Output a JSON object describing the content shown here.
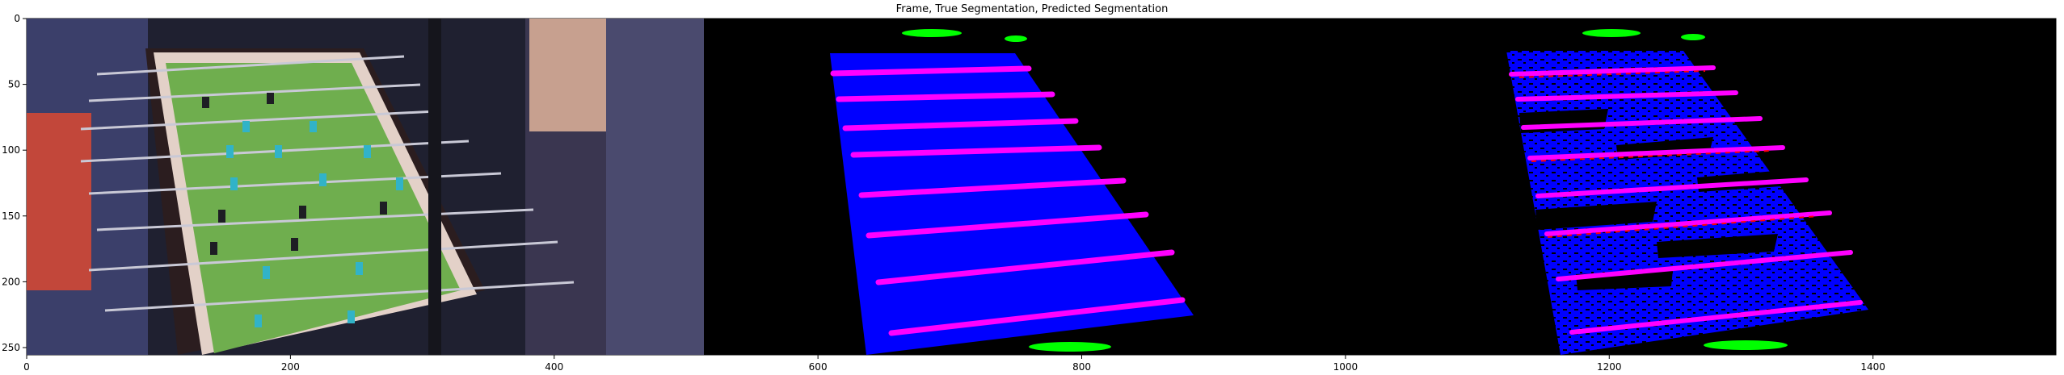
{
  "figure": {
    "title": "Frame, True Segmentation, Predicted Segmentation",
    "x_ticks": [
      "0",
      "200",
      "400",
      "600",
      "800",
      "1000",
      "1200",
      "1400"
    ],
    "y_ticks": [
      "0",
      "50",
      "100",
      "150",
      "200",
      "250"
    ]
  },
  "colors": {
    "field_blue": "#0000ff",
    "rod_magenta": "#ff00ff",
    "ball_green": "#00ff00",
    "background": "#000000",
    "pitch_green": "#6fae4e"
  },
  "panels": [
    "frame-photo",
    "true-segmentation",
    "predicted-segmentation"
  ]
}
